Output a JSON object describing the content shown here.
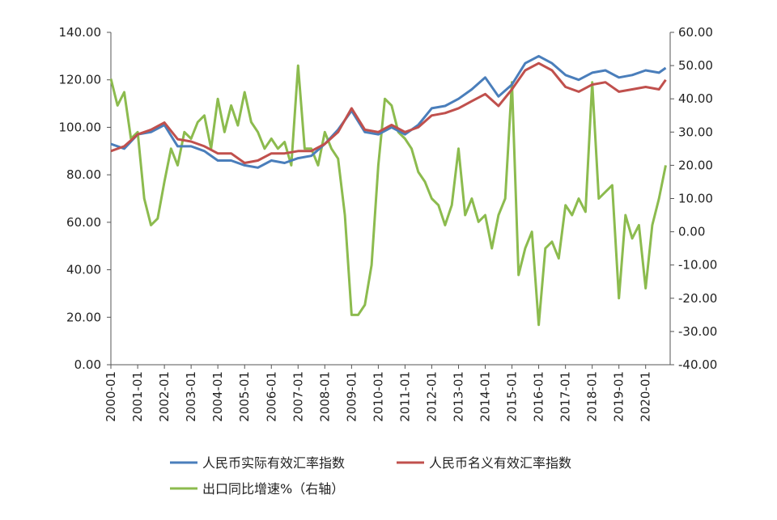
{
  "chart_data": {
    "type": "line",
    "title": "",
    "xlabel": "",
    "y_left": {
      "ylim": [
        0,
        140
      ],
      "ticks": [
        "0.00",
        "20.00",
        "40.00",
        "60.00",
        "80.00",
        "100.00",
        "120.00",
        "140.00"
      ]
    },
    "y_right": {
      "ylim": [
        -40,
        60
      ],
      "ticks": [
        "-40.00",
        "-30.00",
        "-20.00",
        "-10.00",
        "0.00",
        "10.00",
        "20.00",
        "30.00",
        "40.00",
        "50.00",
        "60.00"
      ]
    },
    "x_ticks": [
      "2000-01",
      "2001-01",
      "2002-01",
      "2003-01",
      "2004-01",
      "2005-01",
      "2006-01",
      "2007-01",
      "2008-01",
      "2009-01",
      "2010-01",
      "2011-01",
      "2012-01",
      "2013-01",
      "2014-01",
      "2015-01",
      "2016-01",
      "2017-01",
      "2018-01",
      "2019-01",
      "2020-01"
    ],
    "legend_placement": "bottom",
    "grid": false,
    "series": [
      {
        "name": "人民币实际有效汇率指数",
        "axis": "left",
        "color": "#4a7ebb",
        "x": [
          "2000-01",
          "2000-07",
          "2001-01",
          "2001-07",
          "2002-01",
          "2002-07",
          "2003-01",
          "2003-07",
          "2004-01",
          "2004-07",
          "2005-01",
          "2005-07",
          "2006-01",
          "2006-07",
          "2007-01",
          "2007-07",
          "2008-01",
          "2008-07",
          "2009-01",
          "2009-07",
          "2010-01",
          "2010-07",
          "2011-01",
          "2011-07",
          "2012-01",
          "2012-07",
          "2013-01",
          "2013-07",
          "2014-01",
          "2014-07",
          "2015-01",
          "2015-07",
          "2016-01",
          "2016-07",
          "2017-01",
          "2017-07",
          "2018-01",
          "2018-07",
          "2019-01",
          "2019-07",
          "2020-01",
          "2020-07",
          "2020-10"
        ],
        "values": [
          93,
          91,
          97,
          98,
          101,
          92,
          92,
          90,
          86,
          86,
          84,
          83,
          86,
          85,
          87,
          88,
          93,
          99,
          107,
          98,
          97,
          100,
          97,
          101,
          108,
          109,
          112,
          116,
          121,
          113,
          118,
          127,
          130,
          127,
          122,
          120,
          123,
          124,
          121,
          122,
          124,
          123,
          125
        ]
      },
      {
        "name": "人民币名义有效汇率指数",
        "axis": "left",
        "color": "#c0504d",
        "x": [
          "2000-01",
          "2000-07",
          "2001-01",
          "2001-07",
          "2002-01",
          "2002-07",
          "2003-01",
          "2003-07",
          "2004-01",
          "2004-07",
          "2005-01",
          "2005-07",
          "2006-01",
          "2006-07",
          "2007-01",
          "2007-07",
          "2008-01",
          "2008-07",
          "2009-01",
          "2009-07",
          "2010-01",
          "2010-07",
          "2011-01",
          "2011-07",
          "2012-01",
          "2012-07",
          "2013-01",
          "2013-07",
          "2014-01",
          "2014-07",
          "2015-01",
          "2015-07",
          "2016-01",
          "2016-07",
          "2017-01",
          "2017-07",
          "2018-01",
          "2018-07",
          "2019-01",
          "2019-07",
          "2020-01",
          "2020-07",
          "2020-10"
        ],
        "values": [
          90,
          92,
          97,
          99,
          102,
          95,
          94,
          92,
          89,
          89,
          85,
          86,
          89,
          89,
          90,
          90,
          93,
          98,
          108,
          99,
          98,
          101,
          98,
          100,
          105,
          106,
          108,
          111,
          114,
          109,
          116,
          124,
          127,
          124,
          117,
          115,
          118,
          119,
          115,
          116,
          117,
          116,
          120
        ]
      },
      {
        "name": "出口同比增速%（右轴）",
        "axis": "right",
        "color": "#8cbb4e",
        "x": [
          "2000-01",
          "2000-04",
          "2000-07",
          "2000-10",
          "2001-01",
          "2001-04",
          "2001-07",
          "2001-10",
          "2002-01",
          "2002-04",
          "2002-07",
          "2002-10",
          "2003-01",
          "2003-04",
          "2003-07",
          "2003-10",
          "2004-01",
          "2004-04",
          "2004-07",
          "2004-10",
          "2005-01",
          "2005-04",
          "2005-07",
          "2005-10",
          "2006-01",
          "2006-04",
          "2006-07",
          "2006-10",
          "2007-01",
          "2007-04",
          "2007-07",
          "2007-10",
          "2008-01",
          "2008-04",
          "2008-07",
          "2008-10",
          "2009-01",
          "2009-04",
          "2009-07",
          "2009-10",
          "2010-01",
          "2010-04",
          "2010-07",
          "2010-10",
          "2011-01",
          "2011-04",
          "2011-07",
          "2011-10",
          "2012-01",
          "2012-04",
          "2012-07",
          "2012-10",
          "2013-01",
          "2013-04",
          "2013-07",
          "2013-10",
          "2014-01",
          "2014-04",
          "2014-07",
          "2014-10",
          "2015-01",
          "2015-04",
          "2015-07",
          "2015-10",
          "2016-01",
          "2016-04",
          "2016-07",
          "2016-10",
          "2017-01",
          "2017-04",
          "2017-07",
          "2017-10",
          "2018-01",
          "2018-04",
          "2018-07",
          "2018-10",
          "2019-01",
          "2019-04",
          "2019-07",
          "2019-10",
          "2020-01",
          "2020-04",
          "2020-07",
          "2020-10"
        ],
        "values": [
          46,
          38,
          42,
          28,
          30,
          10,
          2,
          4,
          15,
          25,
          20,
          30,
          28,
          33,
          35,
          25,
          40,
          30,
          38,
          32,
          42,
          33,
          30,
          25,
          28,
          25,
          27,
          20,
          50,
          25,
          25,
          20,
          30,
          25,
          22,
          5,
          -25,
          -25,
          -22,
          -10,
          20,
          40,
          38,
          30,
          28,
          25,
          18,
          15,
          10,
          8,
          2,
          8,
          25,
          5,
          10,
          3,
          5,
          -5,
          5,
          10,
          45,
          -13,
          -5,
          0,
          -28,
          -5,
          -3,
          -8,
          8,
          5,
          10,
          6,
          45,
          10,
          12,
          14,
          -20,
          5,
          -2,
          2,
          -17,
          2,
          10,
          20
        ]
      }
    ]
  }
}
